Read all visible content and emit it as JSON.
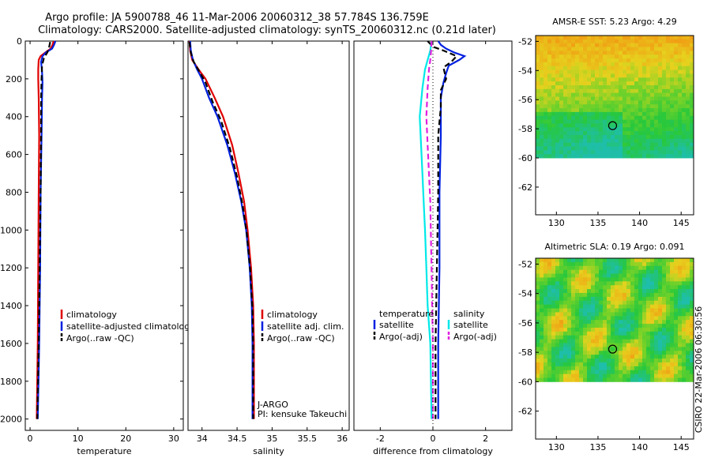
{
  "header": {
    "title_line1": "Argo profile: JA 5900788_46 11-Mar-2006 20060312_38 57.784S 136.759E",
    "title_line2": "Climatology: CARS2000. Satellite-adjusted climatology: synTS_20060312.nc (0.21d later)"
  },
  "side_text": "CSIRO 22-Mar-2006 06:30:56",
  "chart_data": [
    {
      "id": "temperature",
      "type": "line",
      "xlabel": "temperature",
      "ylabel": "",
      "xlim": [
        -1,
        32
      ],
      "ylim": [
        2060,
        0
      ],
      "xticks": [
        "0",
        "10",
        "20",
        "30"
      ],
      "xtick_values": [
        0,
        10,
        20,
        30
      ],
      "yticks": [
        "0",
        "200",
        "400",
        "600",
        "800",
        "1000",
        "1200",
        "1400",
        "1600",
        "1800",
        "2000"
      ],
      "ytick_values": [
        0,
        200,
        400,
        600,
        800,
        1000,
        1200,
        1400,
        1600,
        1800,
        2000
      ],
      "legend": [
        "climatology",
        "satellite-adjusted climatology",
        "Argo(..raw -QC)"
      ],
      "series": [
        {
          "name": "climatology",
          "color": "#e00000",
          "style": "solid",
          "points": [
            [
              4.9,
              0
            ],
            [
              4.7,
              20
            ],
            [
              4.3,
              40
            ],
            [
              3.2,
              60
            ],
            [
              2.2,
              80
            ],
            [
              1.8,
              100
            ],
            [
              1.7,
              150
            ],
            [
              1.7,
              200
            ],
            [
              1.8,
              300
            ],
            [
              1.9,
              500
            ],
            [
              1.8,
              800
            ],
            [
              1.7,
              1200
            ],
            [
              1.6,
              1600
            ],
            [
              1.4,
              2000
            ]
          ]
        },
        {
          "name": "satellite-adjusted climatology",
          "color": "#0020e0",
          "style": "solid",
          "points": [
            [
              5.3,
              0
            ],
            [
              5.0,
              20
            ],
            [
              4.6,
              40
            ],
            [
              3.3,
              60
            ],
            [
              2.6,
              80
            ],
            [
              2.3,
              110
            ],
            [
              2.5,
              160
            ],
            [
              2.6,
              220
            ],
            [
              2.5,
              300
            ],
            [
              2.4,
              500
            ],
            [
              2.2,
              800
            ],
            [
              2.1,
              1200
            ],
            [
              1.9,
              1600
            ],
            [
              1.6,
              2000
            ]
          ]
        },
        {
          "name": "Argo(..raw -QC)",
          "color": "#000000",
          "style": "dashed",
          "points": [
            [
              4.2,
              5
            ],
            [
              4.0,
              30
            ],
            [
              3.6,
              60
            ],
            [
              2.9,
              90
            ],
            [
              2.5,
              130
            ],
            [
              2.4,
              200
            ],
            [
              2.3,
              300
            ],
            [
              2.3,
              500
            ],
            [
              2.2,
              800
            ],
            [
              2.0,
              1200
            ],
            [
              1.8,
              1600
            ],
            [
              1.5,
              2000
            ]
          ]
        }
      ]
    },
    {
      "id": "salinity",
      "type": "line",
      "xlabel": "salinity",
      "ylabel": "",
      "xlim": [
        33.8,
        36.1
      ],
      "ylim": [
        2060,
        0
      ],
      "xticks": [
        "34",
        "34.5",
        "35",
        "35.5",
        "36"
      ],
      "xtick_values": [
        34,
        34.5,
        35,
        35.5,
        36
      ],
      "yticks": [],
      "legend": [
        "climatology",
        "satellite adj. clim.",
        "Argo(..raw -QC)"
      ],
      "annotation": [
        "J-ARGO",
        "PI: kensuke Takeuchi"
      ],
      "series": [
        {
          "name": "climatology",
          "color": "#e00000",
          "style": "solid",
          "points": [
            [
              33.82,
              0
            ],
            [
              33.83,
              50
            ],
            [
              33.86,
              100
            ],
            [
              33.95,
              150
            ],
            [
              34.05,
              200
            ],
            [
              34.18,
              300
            ],
            [
              34.3,
              400
            ],
            [
              34.43,
              550
            ],
            [
              34.52,
              700
            ],
            [
              34.6,
              850
            ],
            [
              34.65,
              1000
            ],
            [
              34.7,
              1200
            ],
            [
              34.73,
              1400
            ],
            [
              34.74,
              1600
            ],
            [
              34.74,
              2000
            ]
          ]
        },
        {
          "name": "satellite adj. clim.",
          "color": "#0020e0",
          "style": "solid",
          "points": [
            [
              33.83,
              0
            ],
            [
              33.84,
              50
            ],
            [
              33.87,
              100
            ],
            [
              33.93,
              150
            ],
            [
              34.0,
              200
            ],
            [
              34.1,
              300
            ],
            [
              34.22,
              400
            ],
            [
              34.36,
              550
            ],
            [
              34.47,
              700
            ],
            [
              34.56,
              850
            ],
            [
              34.63,
              1000
            ],
            [
              34.68,
              1200
            ],
            [
              34.71,
              1400
            ],
            [
              34.72,
              1600
            ],
            [
              34.72,
              2000
            ]
          ]
        },
        {
          "name": "Argo(..raw -QC)",
          "color": "#000000",
          "style": "dashed",
          "points": [
            [
              33.82,
              5
            ],
            [
              33.84,
              60
            ],
            [
              33.88,
              110
            ],
            [
              33.96,
              160
            ],
            [
              34.05,
              220
            ],
            [
              34.15,
              320
            ],
            [
              34.27,
              420
            ],
            [
              34.4,
              570
            ],
            [
              34.5,
              720
            ],
            [
              34.58,
              870
            ],
            [
              34.64,
              1020
            ],
            [
              34.69,
              1220
            ],
            [
              34.72,
              1420
            ],
            [
              34.73,
              1620
            ],
            [
              34.73,
              2000
            ]
          ]
        }
      ]
    },
    {
      "id": "difference",
      "type": "line",
      "xlabel": "difference from climatology",
      "ylabel": "",
      "xlim": [
        -3,
        3
      ],
      "ylim": [
        2060,
        0
      ],
      "xticks": [
        "-2",
        "0",
        "2"
      ],
      "xtick_values": [
        -2,
        0,
        2
      ],
      "yticks": [],
      "legend_titles": [
        "temperature",
        "salinity"
      ],
      "legend": [
        "satellite",
        "Argo(-adj)",
        "satellite",
        "Argo(-adj)"
      ],
      "series": [
        {
          "name": "temperature satellite",
          "color": "#0020e0",
          "style": "solid",
          "points": [
            [
              0.2,
              0
            ],
            [
              0.3,
              20
            ],
            [
              0.5,
              40
            ],
            [
              0.8,
              60
            ],
            [
              1.2,
              80
            ],
            [
              1.0,
              100
            ],
            [
              0.6,
              130
            ],
            [
              0.5,
              170
            ],
            [
              0.4,
              220
            ],
            [
              0.3,
              300
            ],
            [
              0.3,
              500
            ],
            [
              0.25,
              800
            ],
            [
              0.25,
              1200
            ],
            [
              0.2,
              1600
            ],
            [
              0.2,
              2000
            ]
          ]
        },
        {
          "name": "temperature Argo(-adj)",
          "color": "#000000",
          "style": "dashed",
          "points": [
            [
              -0.2,
              0
            ],
            [
              0.0,
              30
            ],
            [
              0.4,
              50
            ],
            [
              0.9,
              80
            ],
            [
              0.7,
              110
            ],
            [
              0.4,
              140
            ],
            [
              0.5,
              200
            ],
            [
              0.3,
              260
            ],
            [
              0.3,
              350
            ],
            [
              0.2,
              500
            ],
            [
              0.2,
              800
            ],
            [
              0.15,
              1200
            ],
            [
              0.1,
              1600
            ],
            [
              0.1,
              2000
            ]
          ]
        },
        {
          "name": "salinity satellite",
          "color": "#00e8e8",
          "style": "solid",
          "points": [
            [
              -0.05,
              0
            ],
            [
              -0.1,
              50
            ],
            [
              -0.2,
              100
            ],
            [
              -0.3,
              150
            ],
            [
              -0.4,
              250
            ],
            [
              -0.5,
              400
            ],
            [
              -0.45,
              550
            ],
            [
              -0.4,
              700
            ],
            [
              -0.35,
              850
            ],
            [
              -0.3,
              1000
            ],
            [
              -0.25,
              1200
            ],
            [
              -0.2,
              1400
            ],
            [
              -0.1,
              1600
            ],
            [
              -0.05,
              2000
            ]
          ]
        },
        {
          "name": "salinity Argo(-adj)",
          "color": "#e020e0",
          "style": "dashed",
          "points": [
            [
              -0.05,
              0
            ],
            [
              -0.07,
              50
            ],
            [
              -0.1,
              100
            ],
            [
              -0.15,
              150
            ],
            [
              -0.2,
              250
            ],
            [
              -0.25,
              400
            ],
            [
              -0.2,
              550
            ],
            [
              -0.15,
              700
            ],
            [
              -0.1,
              850
            ],
            [
              -0.08,
              1000
            ],
            [
              -0.05,
              1200
            ],
            [
              -0.03,
              1400
            ],
            [
              0.0,
              1600
            ],
            [
              0.0,
              2000
            ]
          ]
        },
        {
          "name": "zero",
          "color": "#000000",
          "style": "dotted",
          "points": [
            [
              0,
              0
            ],
            [
              0,
              2060
            ]
          ]
        }
      ]
    },
    {
      "id": "sst_map",
      "type": "heatmap",
      "title": "AMSR-E SST: 5.23  Argo: 4.29",
      "xlim": [
        127.5,
        146.5
      ],
      "ylim": [
        -63.9,
        -51.6
      ],
      "xticks": [
        "130",
        "135",
        "140",
        "145"
      ],
      "xtick_values": [
        130,
        135,
        140,
        145
      ],
      "yticks": [
        "-52",
        "-54",
        "-56",
        "-58",
        "-60",
        "-62"
      ],
      "ytick_values": [
        -52,
        -54,
        -56,
        -58,
        -60,
        -62
      ],
      "data_lat_range": [
        -60,
        -51.6
      ],
      "marker": [
        136.759,
        -57.784
      ]
    },
    {
      "id": "sla_map",
      "type": "heatmap",
      "title": "Altimetric SLA: 0.19  Argo: 0.091",
      "xlim": [
        127.5,
        146.5
      ],
      "ylim": [
        -63.9,
        -51.6
      ],
      "xticks": [
        "130",
        "135",
        "140",
        "145"
      ],
      "xtick_values": [
        130,
        135,
        140,
        145
      ],
      "yticks": [
        "-52",
        "-54",
        "-56",
        "-58",
        "-60",
        "-62"
      ],
      "ytick_values": [
        -52,
        -54,
        -56,
        -58,
        -60,
        -62
      ],
      "data_lat_range": [
        -60,
        -51.6
      ],
      "marker": [
        136.759,
        -57.784
      ]
    }
  ]
}
